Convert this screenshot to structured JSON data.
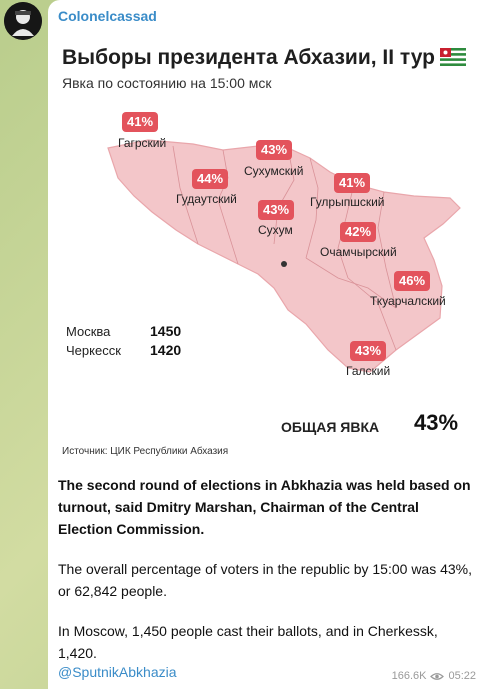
{
  "channel": {
    "name": "Colonelcassad"
  },
  "card": {
    "title": "Выборы президента Абхазии, II тур",
    "subtitle": "Явка по состоянию на 15:00 мск",
    "districts": [
      {
        "name": "Гагрский",
        "turnout": "41%"
      },
      {
        "name": "Сухумский",
        "turnout": "43%"
      },
      {
        "name": "Гудаутский",
        "turnout": "44%"
      },
      {
        "name": "Сухум",
        "turnout": "43%"
      },
      {
        "name": "Гулрыпшский",
        "turnout": "41%"
      },
      {
        "name": "Очамчырский",
        "turnout": "42%"
      },
      {
        "name": "Ткуарчалский",
        "turnout": "46%"
      },
      {
        "name": "Галский",
        "turnout": "43%"
      }
    ],
    "external": [
      {
        "city": "Москва",
        "count": "1450"
      },
      {
        "city": "Черкесск",
        "count": "1420"
      }
    ],
    "total_label": "ОБЩАЯ ЯВКА",
    "total_value": "43%",
    "source": "Источник: ЦИК Республики Абхазия"
  },
  "post": {
    "paragraph1": "The second round of elections in Abkhazia was held based on turnout, said Dmitry Marshan, Chairman of the Central Election Commission.",
    "paragraph2": "The overall percentage of voters in the republic by 15:00 was 43%, or 62,842 people.",
    "paragraph3": "In Moscow, 1,450 people cast their ballots, and in Cherkessk, 1,420.",
    "link": "@SputnikAbkhazia",
    "views": "166.6K",
    "time": "05:22"
  },
  "colors": {
    "badge": "#e3535c",
    "map_fill": "#f3c6c9",
    "link": "#3a8cc8"
  }
}
